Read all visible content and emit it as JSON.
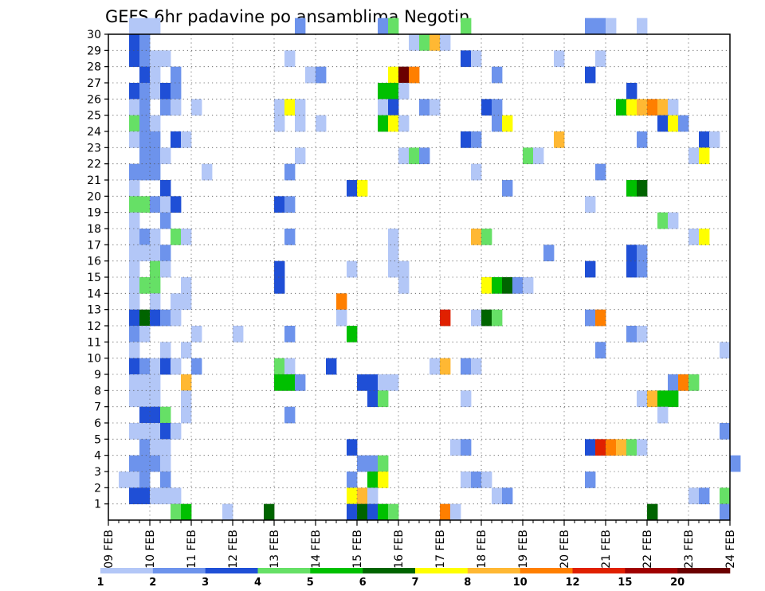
{
  "chart_data": {
    "type": "heatmap",
    "title": "GEFS 6hr padavine po ansamblima Negotin",
    "xlabel": "",
    "ylabel": "",
    "x_tick_labels": [
      "09 FEB",
      "10 FEB",
      "11 FEB",
      "12 FEB",
      "13 FEB",
      "14 FEB",
      "15 FEB",
      "16 FEB",
      "17 FEB",
      "18 FEB",
      "19 FEB",
      "20 FEB",
      "21 FEB",
      "22 FEB",
      "23 FEB",
      "24 FEB"
    ],
    "x_range_days": [
      0,
      15
    ],
    "y_tick_labels": [
      "1",
      "2",
      "3",
      "4",
      "5",
      "6",
      "7",
      "8",
      "9",
      "10",
      "11",
      "12",
      "13",
      "14",
      "15",
      "16",
      "17",
      "18",
      "19",
      "20",
      "21",
      "22",
      "23",
      "24",
      "25",
      "26",
      "27",
      "28",
      "29",
      "30"
    ],
    "y_range": [
      0,
      30
    ],
    "grid": true,
    "colorbar": {
      "boundaries": [
        "1",
        "2",
        "3",
        "4",
        "5",
        "6",
        "7",
        "8",
        "10",
        "12",
        "15",
        "20"
      ],
      "colors": [
        "#b3c7f7",
        "#6d93ec",
        "#1f4fd6",
        "#66e066",
        "#00c000",
        "#006400",
        "#ffff00",
        "#ffb833",
        "#ff7f00",
        "#e02000",
        "#a00000",
        "#6b0000"
      ]
    },
    "cell_width_days": 0.25,
    "cells": [
      [
        0.5,
        30,
        0
      ],
      [
        0.75,
        30,
        0
      ],
      [
        1,
        30,
        0
      ],
      [
        4.5,
        30,
        1
      ],
      [
        6.5,
        30,
        1
      ],
      [
        6.75,
        30,
        3
      ],
      [
        8.5,
        30,
        3
      ],
      [
        11.5,
        30,
        1
      ],
      [
        11.75,
        30,
        1
      ],
      [
        12,
        30,
        0
      ],
      [
        12.75,
        30,
        0
      ],
      [
        0.5,
        29,
        2
      ],
      [
        0.75,
        29,
        1
      ],
      [
        7.25,
        29,
        0
      ],
      [
        7.5,
        29,
        3
      ],
      [
        7.75,
        29,
        7
      ],
      [
        8,
        29,
        0
      ],
      [
        0.5,
        28,
        2
      ],
      [
        0.75,
        28,
        1
      ],
      [
        1,
        28,
        0
      ],
      [
        1.25,
        28,
        0
      ],
      [
        4.25,
        28,
        0
      ],
      [
        8.5,
        28,
        2
      ],
      [
        8.75,
        28,
        0
      ],
      [
        10.75,
        28,
        0
      ],
      [
        11.75,
        28,
        0
      ],
      [
        0.75,
        27,
        2
      ],
      [
        1,
        27,
        0
      ],
      [
        1.5,
        27,
        1
      ],
      [
        4.75,
        27,
        0
      ],
      [
        5,
        27,
        1
      ],
      [
        6.75,
        27,
        6
      ],
      [
        7,
        27,
        11
      ],
      [
        7.25,
        27,
        8
      ],
      [
        9.25,
        27,
        1
      ],
      [
        11.5,
        27,
        2
      ],
      [
        0.5,
        26,
        2
      ],
      [
        0.75,
        26,
        1
      ],
      [
        1,
        26,
        0
      ],
      [
        1.25,
        26,
        2
      ],
      [
        1.5,
        26,
        1
      ],
      [
        6.5,
        26,
        4
      ],
      [
        6.75,
        26,
        4
      ],
      [
        7,
        26,
        0
      ],
      [
        12.5,
        26,
        2
      ],
      [
        0.5,
        25,
        0
      ],
      [
        0.75,
        25,
        1
      ],
      [
        1.25,
        25,
        1
      ],
      [
        1.5,
        25,
        0
      ],
      [
        2,
        25,
        0
      ],
      [
        4,
        25,
        0
      ],
      [
        4.25,
        25,
        6
      ],
      [
        4.5,
        25,
        0
      ],
      [
        6.5,
        25,
        0
      ],
      [
        6.75,
        25,
        2
      ],
      [
        7.5,
        25,
        1
      ],
      [
        7.75,
        25,
        0
      ],
      [
        9,
        25,
        2
      ],
      [
        9.25,
        25,
        1
      ],
      [
        12.25,
        25,
        4
      ],
      [
        12.5,
        25,
        6
      ],
      [
        12.75,
        25,
        7
      ],
      [
        13,
        25,
        8
      ],
      [
        13.25,
        25,
        7
      ],
      [
        13.5,
        25,
        0
      ],
      [
        0.5,
        24,
        3
      ],
      [
        0.75,
        24,
        1
      ],
      [
        1,
        24,
        0
      ],
      [
        4,
        24,
        0
      ],
      [
        4.5,
        24,
        0
      ],
      [
        5,
        24,
        0
      ],
      [
        6.5,
        24,
        4
      ],
      [
        6.75,
        24,
        6
      ],
      [
        7,
        24,
        0
      ],
      [
        9.25,
        24,
        1
      ],
      [
        9.5,
        24,
        6
      ],
      [
        13.25,
        24,
        2
      ],
      [
        13.5,
        24,
        6
      ],
      [
        13.75,
        24,
        1
      ],
      [
        0.5,
        23,
        0
      ],
      [
        0.75,
        23,
        1
      ],
      [
        1,
        23,
        1
      ],
      [
        1.5,
        23,
        2
      ],
      [
        1.75,
        23,
        0
      ],
      [
        8.5,
        23,
        2
      ],
      [
        8.75,
        23,
        1
      ],
      [
        10.75,
        23,
        7
      ],
      [
        12.75,
        23,
        1
      ],
      [
        14.25,
        23,
        2
      ],
      [
        14.5,
        23,
        0
      ],
      [
        0.75,
        22,
        1
      ],
      [
        1,
        22,
        1
      ],
      [
        1.25,
        22,
        0
      ],
      [
        4.5,
        22,
        0
      ],
      [
        7,
        22,
        0
      ],
      [
        7.25,
        22,
        3
      ],
      [
        7.5,
        22,
        1
      ],
      [
        10,
        22,
        3
      ],
      [
        10.25,
        22,
        0
      ],
      [
        14,
        22,
        0
      ],
      [
        14.25,
        22,
        6
      ],
      [
        0.5,
        21,
        1
      ],
      [
        0.75,
        21,
        1
      ],
      [
        1,
        21,
        1
      ],
      [
        2.25,
        21,
        0
      ],
      [
        4.25,
        21,
        1
      ],
      [
        8.75,
        21,
        0
      ],
      [
        11.75,
        21,
        1
      ],
      [
        0.5,
        20,
        0
      ],
      [
        1.25,
        20,
        2
      ],
      [
        5.75,
        20,
        2
      ],
      [
        6,
        20,
        6
      ],
      [
        9.5,
        20,
        1
      ],
      [
        12.5,
        20,
        4
      ],
      [
        12.75,
        20,
        5
      ],
      [
        0.5,
        19,
        3
      ],
      [
        0.75,
        19,
        3
      ],
      [
        1,
        19,
        1
      ],
      [
        1.25,
        19,
        0
      ],
      [
        1.5,
        19,
        2
      ],
      [
        4,
        19,
        2
      ],
      [
        4.25,
        19,
        1
      ],
      [
        11.5,
        19,
        0
      ],
      [
        0.5,
        18,
        0
      ],
      [
        1.25,
        18,
        1
      ],
      [
        13.25,
        18,
        3
      ],
      [
        13.5,
        18,
        0
      ],
      [
        0.5,
        17,
        0
      ],
      [
        0.75,
        17,
        1
      ],
      [
        1,
        17,
        0
      ],
      [
        1.5,
        17,
        3
      ],
      [
        1.75,
        17,
        0
      ],
      [
        4.25,
        17,
        1
      ],
      [
        6.75,
        17,
        0
      ],
      [
        8.75,
        17,
        7
      ],
      [
        9,
        17,
        3
      ],
      [
        14,
        17,
        0
      ],
      [
        14.25,
        17,
        6
      ],
      [
        0.5,
        16,
        0
      ],
      [
        0.75,
        16,
        0
      ],
      [
        1,
        16,
        0
      ],
      [
        1.25,
        16,
        1
      ],
      [
        6.75,
        16,
        0
      ],
      [
        10.5,
        16,
        1
      ],
      [
        12.5,
        16,
        2
      ],
      [
        12.75,
        16,
        1
      ],
      [
        0.5,
        15,
        0
      ],
      [
        1,
        15,
        3
      ],
      [
        1.25,
        15,
        0
      ],
      [
        4,
        15,
        2
      ],
      [
        5.75,
        15,
        0
      ],
      [
        6.75,
        15,
        0
      ],
      [
        7,
        15,
        0
      ],
      [
        11.5,
        15,
        2
      ],
      [
        12.5,
        15,
        2
      ],
      [
        12.75,
        15,
        1
      ],
      [
        0.5,
        14,
        0
      ],
      [
        0.75,
        14,
        3
      ],
      [
        1,
        14,
        3
      ],
      [
        1.75,
        14,
        0
      ],
      [
        4,
        14,
        2
      ],
      [
        7,
        14,
        0
      ],
      [
        9,
        14,
        6
      ],
      [
        9.25,
        14,
        4
      ],
      [
        9.5,
        14,
        5
      ],
      [
        9.75,
        14,
        1
      ],
      [
        10,
        14,
        0
      ],
      [
        0.5,
        13,
        0
      ],
      [
        1,
        13,
        0
      ],
      [
        1.5,
        13,
        0
      ],
      [
        1.75,
        13,
        0
      ],
      [
        5.5,
        13,
        8
      ],
      [
        0.5,
        12,
        2
      ],
      [
        0.75,
        12,
        5
      ],
      [
        1,
        12,
        2
      ],
      [
        1.25,
        12,
        1
      ],
      [
        1.5,
        12,
        0
      ],
      [
        5.5,
        12,
        0
      ],
      [
        8,
        12,
        9
      ],
      [
        8.75,
        12,
        0
      ],
      [
        9,
        12,
        5
      ],
      [
        9.25,
        12,
        3
      ],
      [
        11.5,
        12,
        1
      ],
      [
        11.75,
        12,
        8
      ],
      [
        0.5,
        11,
        1
      ],
      [
        0.75,
        11,
        0
      ],
      [
        2,
        11,
        0
      ],
      [
        3,
        11,
        0
      ],
      [
        4.25,
        11,
        1
      ],
      [
        5.75,
        11,
        4
      ],
      [
        12.5,
        11,
        1
      ],
      [
        12.75,
        11,
        0
      ],
      [
        0.5,
        10,
        0
      ],
      [
        1.25,
        10,
        0
      ],
      [
        1.75,
        10,
        0
      ],
      [
        11.75,
        10,
        1
      ],
      [
        14.75,
        10,
        0
      ],
      [
        0.5,
        9,
        2
      ],
      [
        0.75,
        9,
        1
      ],
      [
        1,
        9,
        0
      ],
      [
        1.25,
        9,
        2
      ],
      [
        1.5,
        9,
        0
      ],
      [
        2,
        9,
        1
      ],
      [
        4,
        9,
        3
      ],
      [
        4.25,
        9,
        0
      ],
      [
        5.25,
        9,
        2
      ],
      [
        7.75,
        9,
        0
      ],
      [
        8,
        9,
        7
      ],
      [
        8.5,
        9,
        1
      ],
      [
        8.75,
        9,
        0
      ],
      [
        0.5,
        8,
        0
      ],
      [
        0.75,
        8,
        0
      ],
      [
        1,
        8,
        0
      ],
      [
        1.75,
        8,
        7
      ],
      [
        4,
        8,
        4
      ],
      [
        4.25,
        8,
        4
      ],
      [
        4.5,
        8,
        1
      ],
      [
        6,
        8,
        2
      ],
      [
        6.25,
        8,
        2
      ],
      [
        6.5,
        8,
        0
      ],
      [
        6.75,
        8,
        0
      ],
      [
        13.5,
        8,
        1
      ],
      [
        13.75,
        8,
        8
      ],
      [
        14,
        8,
        3
      ],
      [
        0.5,
        7,
        0
      ],
      [
        0.75,
        7,
        0
      ],
      [
        1,
        7,
        0
      ],
      [
        1.75,
        7,
        0
      ],
      [
        6.25,
        7,
        2
      ],
      [
        6.5,
        7,
        3
      ],
      [
        8.5,
        7,
        0
      ],
      [
        12.75,
        7,
        0
      ],
      [
        13,
        7,
        7
      ],
      [
        13.25,
        7,
        4
      ],
      [
        13.5,
        7,
        4
      ],
      [
        0.75,
        6,
        2
      ],
      [
        1,
        6,
        2
      ],
      [
        1.25,
        6,
        3
      ],
      [
        1.75,
        6,
        0
      ],
      [
        4.25,
        6,
        1
      ],
      [
        13.25,
        6,
        0
      ],
      [
        0.5,
        5,
        0
      ],
      [
        0.75,
        5,
        0
      ],
      [
        1,
        5,
        0
      ],
      [
        1.25,
        5,
        2
      ],
      [
        1.5,
        5,
        0
      ],
      [
        14.75,
        5,
        1
      ],
      [
        0.75,
        4,
        1
      ],
      [
        1,
        4,
        0
      ],
      [
        1.25,
        4,
        0
      ],
      [
        5.75,
        4,
        2
      ],
      [
        8.25,
        4,
        0
      ],
      [
        8.5,
        4,
        1
      ],
      [
        11.5,
        4,
        2
      ],
      [
        11.75,
        4,
        9
      ],
      [
        12,
        4,
        8
      ],
      [
        12.25,
        4,
        7
      ],
      [
        12.5,
        4,
        3
      ],
      [
        12.75,
        4,
        0
      ],
      [
        0.5,
        3,
        1
      ],
      [
        0.75,
        3,
        1
      ],
      [
        1,
        3,
        1
      ],
      [
        1.25,
        3,
        0
      ],
      [
        6,
        3,
        1
      ],
      [
        6.25,
        3,
        1
      ],
      [
        6.5,
        3,
        3
      ],
      [
        15,
        3,
        1
      ],
      [
        0.25,
        2,
        0
      ],
      [
        0.5,
        2,
        0
      ],
      [
        0.75,
        2,
        1
      ],
      [
        1.25,
        2,
        1
      ],
      [
        5.75,
        2,
        1
      ],
      [
        6.25,
        2,
        4
      ],
      [
        6.5,
        2,
        6
      ],
      [
        8.5,
        2,
        0
      ],
      [
        8.75,
        2,
        1
      ],
      [
        9,
        2,
        0
      ],
      [
        11.5,
        2,
        1
      ],
      [
        0.5,
        1,
        2
      ],
      [
        0.75,
        1,
        2
      ],
      [
        1,
        1,
        0
      ],
      [
        1.25,
        1,
        0
      ],
      [
        1.5,
        1,
        0
      ],
      [
        5.75,
        1,
        6
      ],
      [
        6,
        1,
        7
      ],
      [
        6.25,
        1,
        0
      ],
      [
        9.25,
        1,
        0
      ],
      [
        9.5,
        1,
        1
      ],
      [
        14,
        1,
        0
      ],
      [
        14.25,
        1,
        1
      ],
      [
        14.75,
        1,
        3
      ],
      [
        1.5,
        0,
        3
      ],
      [
        1.75,
        0,
        4
      ],
      [
        2.75,
        0,
        0
      ],
      [
        3.75,
        0,
        5
      ],
      [
        5.75,
        0,
        2
      ],
      [
        6,
        0,
        5
      ],
      [
        6.25,
        0,
        2
      ],
      [
        6.5,
        0,
        4
      ],
      [
        6.75,
        0,
        3
      ],
      [
        8,
        0,
        8
      ],
      [
        8.25,
        0,
        0
      ],
      [
        13,
        0,
        5
      ],
      [
        14.75,
        0,
        1
      ]
    ]
  }
}
